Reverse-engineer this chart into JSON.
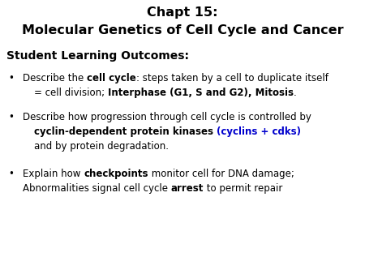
{
  "title_line1": "Chapt 15:",
  "title_line2": "Molecular Genetics of Cell Cycle and Cancer",
  "section_header": "Student Learning Outcomes:",
  "background_color": "#ffffff",
  "title_color": "#000000",
  "header_color": "#000000",
  "blue_color": "#0000CD",
  "bullet_color": "#000000",
  "title_fontsize": 11.5,
  "body_fontsize": 8.5,
  "header_fontsize": 10.0,
  "fig_width": 4.5,
  "fig_height": 3.38,
  "dpi": 100
}
